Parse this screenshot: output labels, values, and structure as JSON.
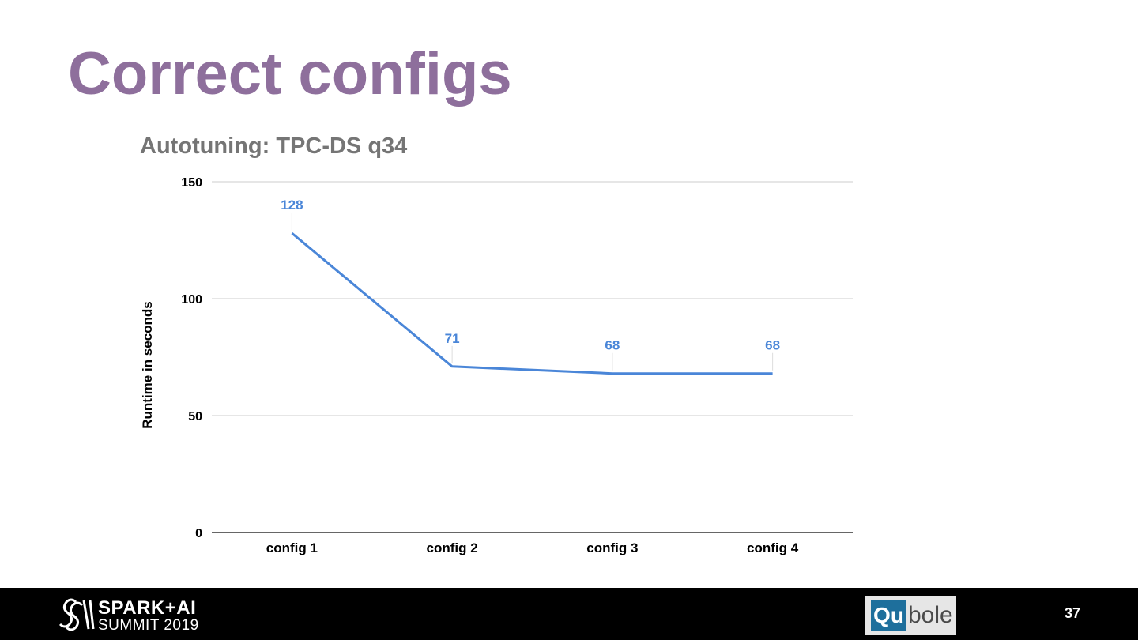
{
  "slide": {
    "title": "Correct configs",
    "page_number": "37"
  },
  "chart_data": {
    "type": "line",
    "title": "Autotuning: TPC-DS q34",
    "xlabel": "",
    "ylabel": "Runtime in seconds",
    "categories": [
      "config 1",
      "config 2",
      "config 3",
      "config 4"
    ],
    "series": [
      {
        "values": [
          128,
          71,
          68,
          68
        ]
      }
    ],
    "data_labels": [
      "128",
      "71",
      "68",
      "68"
    ],
    "ylim": [
      0,
      150
    ],
    "yticks": [
      0,
      50,
      100,
      150
    ],
    "ytick_labels": [
      "0",
      "50",
      "100",
      "150"
    ],
    "grid": true,
    "legend": "none",
    "line_color": "#4a86d8",
    "label_color": "#4a86d8",
    "title_color": "#757575"
  },
  "footer": {
    "event_logo": {
      "line1": "SPARK+AI",
      "line2": "SUMMIT 2019",
      "icon": "spark-summit-icon"
    },
    "partner_logo": {
      "part1": "Qu",
      "part2": "bole"
    }
  }
}
